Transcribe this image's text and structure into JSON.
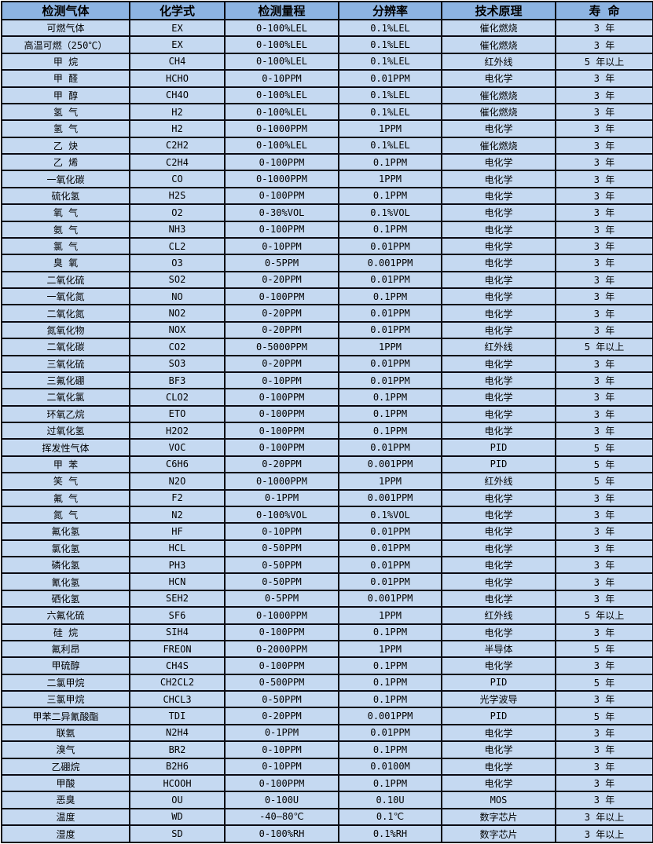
{
  "colors": {
    "header_bg": "#8DB4E2",
    "row_bg": "#C5D9F1",
    "border": "#0b0b14",
    "text": "#000000"
  },
  "table": {
    "columns": [
      "检测气体",
      "化学式",
      "检测量程",
      "分辨率",
      "技术原理",
      "寿 命"
    ],
    "column_keys": [
      "gas",
      "formula",
      "range",
      "resolution",
      "principle",
      "lifespan"
    ],
    "rows": [
      [
        "可燃气体",
        "EX",
        "0-100%LEL",
        "0.1%LEL",
        "催化燃烧",
        "3 年"
      ],
      [
        "高温可燃（250℃）",
        "EX",
        "0-100%LEL",
        "0.1%LEL",
        "催化燃烧",
        "3 年"
      ],
      [
        "甲 烷",
        "CH4",
        "0-100%LEL",
        "0.1%LEL",
        "红外线",
        "5 年以上"
      ],
      [
        "甲 醛",
        "HCHO",
        "0-10PPM",
        "0.01PPM",
        "电化学",
        "3 年"
      ],
      [
        "甲 醇",
        "CH4O",
        "0-100%LEL",
        "0.1%LEL",
        "催化燃烧",
        "3 年"
      ],
      [
        "氢 气",
        "H2",
        "0-100%LEL",
        "0.1%LEL",
        "催化燃烧",
        "3 年"
      ],
      [
        "氢 气",
        "H2",
        "0-1000PPM",
        "1PPM",
        "电化学",
        "3 年"
      ],
      [
        "乙 炔",
        "C2H2",
        "0-100%LEL",
        "0.1%LEL",
        "催化燃烧",
        "3 年"
      ],
      [
        "乙 烯",
        "C2H4",
        "0-100PPM",
        "0.1PPM",
        "电化学",
        "3 年"
      ],
      [
        "一氧化碳",
        "CO",
        "0-1000PPM",
        "1PPM",
        "电化学",
        "3 年"
      ],
      [
        "硫化氢",
        "H2S",
        "0-100PPM",
        "0.1PPM",
        "电化学",
        "3 年"
      ],
      [
        "氧 气",
        "O2",
        "0-30%VOL",
        "0.1%VOL",
        "电化学",
        "3 年"
      ],
      [
        "氨 气",
        "NH3",
        "0-100PPM",
        "0.1PPM",
        "电化学",
        "3 年"
      ],
      [
        "氯 气",
        "CL2",
        "0-10PPM",
        "0.01PPM",
        "电化学",
        "3 年"
      ],
      [
        "臭 氧",
        "O3",
        "0-5PPM",
        "0.001PPM",
        "电化学",
        "3 年"
      ],
      [
        "二氧化硫",
        "SO2",
        "0-20PPM",
        "0.01PPM",
        "电化学",
        "3 年"
      ],
      [
        "一氧化氮",
        "NO",
        "0-100PPM",
        "0.1PPM",
        "电化学",
        "3 年"
      ],
      [
        "二氧化氮",
        "NO2",
        "0-20PPM",
        "0.01PPM",
        "电化学",
        "3 年"
      ],
      [
        "氮氧化物",
        "NOX",
        "0-20PPM",
        "0.01PPM",
        "电化学",
        "3 年"
      ],
      [
        "二氧化碳",
        "CO2",
        "0-5000PPM",
        "1PPM",
        "红外线",
        "5 年以上"
      ],
      [
        "三氧化硫",
        "SO3",
        "0-20PPM",
        "0.01PPM",
        "电化学",
        "3 年"
      ],
      [
        "三氟化硼",
        "BF3",
        "0-10PPM",
        "0.01PPM",
        "电化学",
        "3 年"
      ],
      [
        "二氧化氯",
        "CLO2",
        "0-100PPM",
        "0.1PPM",
        "电化学",
        "3 年"
      ],
      [
        "环氧乙烷",
        "ETO",
        "0-100PPM",
        "0.1PPM",
        "电化学",
        "3 年"
      ],
      [
        "过氧化氢",
        "H2O2",
        "0-100PPM",
        "0.1PPM",
        "电化学",
        "3 年"
      ],
      [
        "挥发性气体",
        "VOC",
        "0-100PPM",
        "0.01PPM",
        "PID",
        "5 年"
      ],
      [
        "甲 苯",
        "C6H6",
        "0-20PPM",
        "0.001PPM",
        "PID",
        "5 年"
      ],
      [
        "笑 气",
        "N2O",
        "0-1000PPM",
        "1PPM",
        "红外线",
        "5 年"
      ],
      [
        "氟 气",
        "F2",
        "0-1PPM",
        "0.001PPM",
        "电化学",
        "3 年"
      ],
      [
        "氮 气",
        "N2",
        "0-100%VOL",
        "0.1%VOL",
        "电化学",
        "3 年"
      ],
      [
        "氟化氢",
        "HF",
        "0-10PPM",
        "0.01PPM",
        "电化学",
        "3 年"
      ],
      [
        "氯化氢",
        "HCL",
        "0-50PPM",
        "0.01PPM",
        "电化学",
        "3 年"
      ],
      [
        "磷化氢",
        "PH3",
        "0-50PPM",
        "0.01PPM",
        "电化学",
        "3 年"
      ],
      [
        "氰化氢",
        "HCN",
        "0-50PPM",
        "0.01PPM",
        "电化学",
        "3 年"
      ],
      [
        "硒化氢",
        "SEH2",
        "0-5PPM",
        "0.001PPM",
        "电化学",
        "3 年"
      ],
      [
        "六氟化硫",
        "SF6",
        "0-1000PPM",
        "1PPM",
        "红外线",
        "5 年以上"
      ],
      [
        "硅 烷",
        "SIH4",
        "0-100PPM",
        "0.1PPM",
        "电化学",
        "3 年"
      ],
      [
        "氟利昂",
        "FREON",
        "0-2000PPM",
        "1PPM",
        "半导体",
        "5 年"
      ],
      [
        "甲硫醇",
        "CH4S",
        "0-100PPM",
        "0.1PPM",
        "电化学",
        "3 年"
      ],
      [
        "二氯甲烷",
        "CH2CL2",
        "0-500PPM",
        "0.1PPM",
        "PID",
        "5 年"
      ],
      [
        "三氯甲烷",
        "CHCL3",
        "0-50PPM",
        "0.1PPM",
        "光学波导",
        "3 年"
      ],
      [
        "甲苯二异氰酸酯",
        "TDI",
        "0-20PPM",
        "0.001PPM",
        "PID",
        "5 年"
      ],
      [
        "联氨",
        "N2H4",
        "0-1PPM",
        "0.01PPM",
        "电化学",
        "3 年"
      ],
      [
        "溴气",
        "BR2",
        "0-10PPM",
        "0.1PPM",
        "电化学",
        "3 年"
      ],
      [
        "乙硼烷",
        "B2H6",
        "0-10PPM",
        "0.0100M",
        "电化学",
        "3 年"
      ],
      [
        "甲酸",
        "HCOOH",
        "0-100PPM",
        "0.1PPM",
        "电化学",
        "3 年"
      ],
      [
        "恶臭",
        "OU",
        "0-100U",
        "0.10U",
        "MOS",
        "3 年"
      ],
      [
        "温度",
        "WD",
        "-40—80℃",
        "0.1℃",
        "数字芯片",
        "3 年以上"
      ],
      [
        "湿度",
        "SD",
        "0-100%RH",
        "0.1%RH",
        "数字芯片",
        "3 年以上"
      ]
    ]
  }
}
